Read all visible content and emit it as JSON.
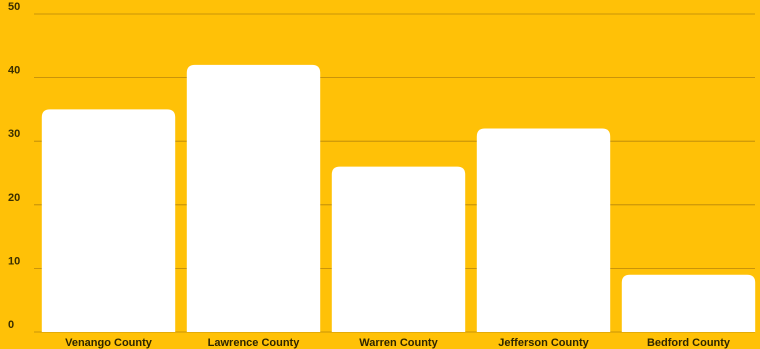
{
  "chart_data": {
    "type": "bar",
    "categories": [
      "Venango County",
      "Lawrence County",
      "Warren County",
      "Jefferson County",
      "Bedford County"
    ],
    "values": [
      35,
      42,
      26,
      32,
      9
    ],
    "title": "",
    "xlabel": "",
    "ylabel": "",
    "ylim": [
      0,
      50
    ],
    "yticks": [
      0,
      10,
      20,
      30,
      40,
      50
    ],
    "grid": true,
    "colors": {
      "background": "#FFC107",
      "bar": "#FFFFFF",
      "grid": "#B8860B",
      "text": "#3A2E00"
    }
  }
}
